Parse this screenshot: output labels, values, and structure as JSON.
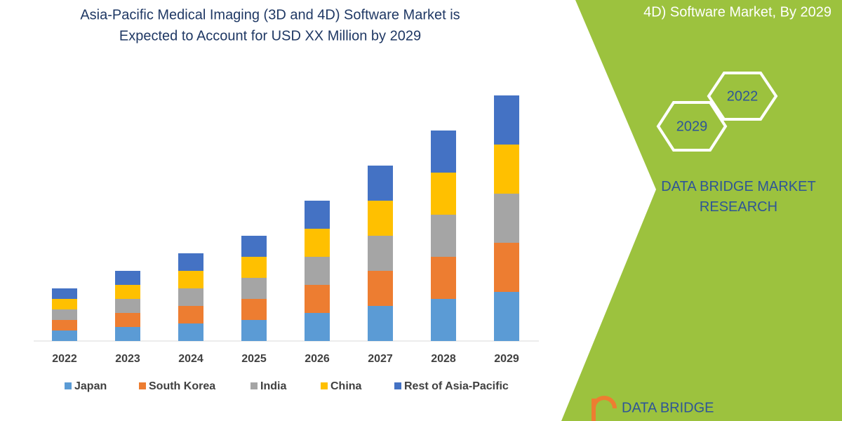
{
  "chart_data": {
    "type": "stacked_bar",
    "title": "Asia-Pacific Medical Imaging (3D and 4D) Software Market is Expected to Account for USD XX Million by 2029",
    "categories": [
      "2022",
      "2023",
      "2024",
      "2025",
      "2026",
      "2027",
      "2028",
      "2029"
    ],
    "series": [
      {
        "name": "Japan",
        "color": "#5b9bd5",
        "values": [
          15,
          20,
          25,
          30,
          40,
          50,
          60,
          70
        ]
      },
      {
        "name": "South Korea",
        "color": "#ed7d31",
        "values": [
          15,
          20,
          25,
          30,
          40,
          50,
          60,
          70
        ]
      },
      {
        "name": "India",
        "color": "#a5a5a5",
        "values": [
          15,
          20,
          25,
          30,
          40,
          50,
          60,
          70
        ]
      },
      {
        "name": "China",
        "color": "#ffc000",
        "values": [
          15,
          20,
          25,
          30,
          40,
          50,
          60,
          70
        ]
      },
      {
        "name": "Rest of Asia-Pacific",
        "color": "#4472c4",
        "values": [
          15,
          20,
          25,
          30,
          40,
          50,
          60,
          70
        ]
      }
    ],
    "ylim": [
      0,
      350
    ]
  },
  "panel": {
    "heading": "4D) Software Market, By 2029",
    "hex_top": "2022",
    "hex_bottom": "2029",
    "brand": "DATA BRIDGE MARKET RESEARCH",
    "logo": "DATA BRIDGE"
  }
}
